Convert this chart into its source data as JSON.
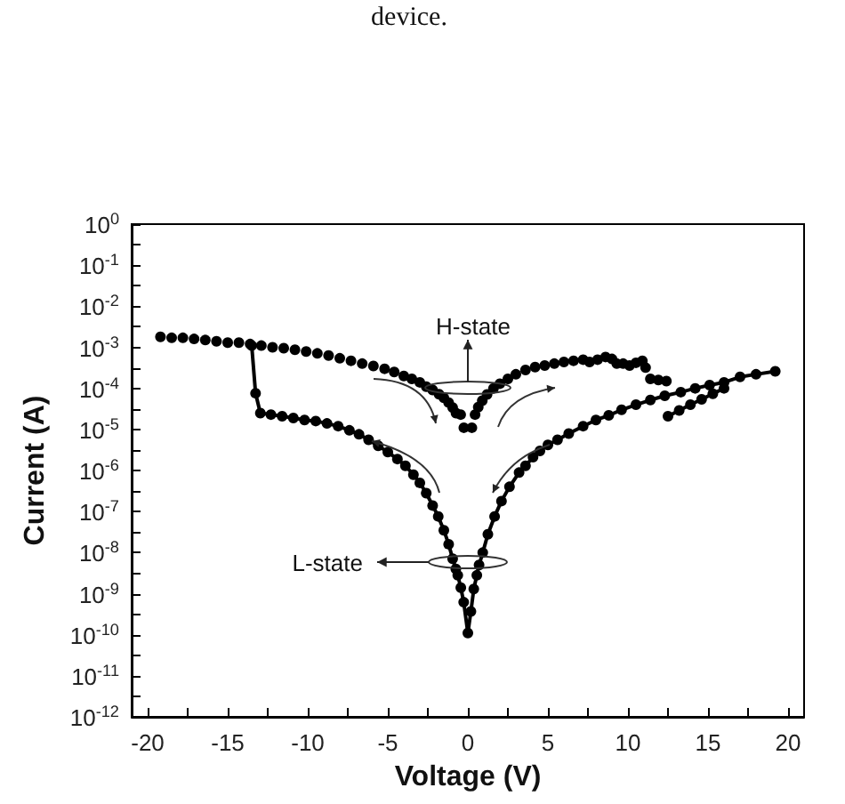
{
  "chart_data": {
    "type": "line",
    "xlabel": "Voltage (V)",
    "ylabel": "Current (A)",
    "log": "y",
    "marker": "circle",
    "line_style": "solid",
    "annotations": [
      "device.",
      "H-state",
      "L-state"
    ],
    "xlim": [
      -21,
      21
    ],
    "xticks": [
      -20,
      {
        "value": -17.5,
        "label": null
      },
      -15,
      {
        "value": -12.5,
        "label": null
      },
      -10,
      {
        "value": -7.5,
        "label": null
      },
      -5,
      {
        "value": -2.5,
        "label": null
      },
      0,
      {
        "value": 2.5,
        "label": null
      },
      5,
      {
        "value": 7.5,
        "label": null
      },
      10,
      {
        "value": 12.5,
        "label": null
      },
      15,
      {
        "value": 17.5,
        "label": null
      },
      20
    ],
    "ylim": [
      1e-12,
      1
    ],
    "yticks": [
      {
        "value": 1e-12,
        "label": "10$^{-12}$"
      },
      {
        "value": 3.16e-12,
        "label": null
      },
      {
        "value": 1e-11,
        "label": "10$^{-11}$"
      },
      {
        "value": 3.16e-11,
        "label": null
      },
      {
        "value": 1e-10,
        "label": "10$^{-10}$"
      },
      {
        "value": 3.16e-10,
        "label": null
      },
      {
        "value": 1e-09,
        "label": "10$^{-9}$"
      },
      {
        "value": 3.16e-09,
        "label": null
      },
      {
        "value": 1e-08,
        "label": "10$^{-8}$"
      },
      {
        "value": 3.16e-08,
        "label": null
      },
      {
        "value": 1e-07,
        "label": "10$^{-7}$"
      },
      {
        "value": 3.16e-07,
        "label": null
      },
      {
        "value": 1e-06,
        "label": "10$^{-6}$"
      },
      {
        "value": 3.16e-06,
        "label": null
      },
      {
        "value": 1e-05,
        "label": "10$^{-5}$"
      },
      {
        "value": 3.16e-05,
        "label": null
      },
      {
        "value": 0.0001,
        "label": "10$^{-4}$"
      },
      {
        "value": 0.000316,
        "label": null
      },
      {
        "value": 0.001,
        "label": "10$^{-3}$"
      },
      {
        "value": 0.00316,
        "label": null
      },
      {
        "value": 0.01,
        "label": "10$^{-2}$"
      },
      {
        "value": 0.0316,
        "label": null
      },
      {
        "value": 0.1,
        "label": "10$^{-1}$"
      },
      {
        "value": 0.316,
        "label": null
      },
      {
        "value": 1,
        "label": "10$^{0}$"
      }
    ],
    "series": [
      {
        "type": "scatter",
        "color": "#000000",
        "x": [
          -19.2,
          -18.5,
          -17.8,
          -17.1,
          -16.4,
          -15.7,
          -15.0,
          -14.3,
          -13.6,
          -12.9,
          -12.2,
          -11.5,
          -10.8,
          -10.1,
          -9.4,
          -8.7,
          -8.0,
          -7.3,
          -6.6,
          -5.9,
          -5.2,
          -4.6,
          -4.0,
          -3.5,
          -3.0,
          -2.6,
          -2.2,
          -1.8,
          -1.5,
          -1.2,
          -0.95,
          -0.74,
          -0.45,
          -0.25,
          0.25,
          0.45,
          0.65,
          0.9,
          1.2,
          1.6,
          2.0,
          2.5,
          3.0,
          3.6,
          4.2,
          4.8,
          5.4,
          6.0,
          6.6,
          7.2,
          7.6,
          8.1,
          8.6,
          9.0,
          9.3,
          9.7,
          10.1,
          10.5,
          10.9,
          11.1,
          11.4,
          11.9,
          12.4
        ],
        "values": [
          0.0018,
          0.0017,
          0.0017,
          0.0016,
          0.0015,
          0.0014,
          0.0013,
          0.0013,
          0.0012,
          0.0011,
          0.001,
          0.00095,
          0.00087,
          0.00079,
          0.00071,
          0.00063,
          0.00054,
          0.00047,
          0.0004,
          0.00035,
          0.0003,
          0.00025,
          0.0002,
          0.00017,
          0.00014,
          0.00011,
          9.1e-05,
          7.2e-05,
          5.9e-05,
          4.5e-05,
          3.4e-05,
          2.5e-05,
          2.3e-05,
          1.1e-05,
          1.1e-05,
          2.3e-05,
          3.5e-05,
          5e-05,
          7.1e-05,
          0.0001,
          0.00013,
          0.00017,
          0.00022,
          0.00028,
          0.00033,
          0.00036,
          0.0004,
          0.00044,
          0.00047,
          0.0005,
          0.00044,
          0.0005,
          0.00058,
          0.00052,
          0.0004,
          0.0004,
          0.00036,
          0.00042,
          0.00047,
          0.00032,
          0.00017,
          0.00016,
          0.00015
        ]
      },
      {
        "color": "#000000",
        "x": [
          -13.5,
          -13.26,
          -12.96,
          -12.3,
          -11.6,
          -10.9,
          -10.2,
          -9.5,
          -8.8,
          -8.1,
          -7.4,
          -6.8,
          -6.2,
          -5.6,
          -5.0,
          -4.4,
          -3.9,
          -3.4,
          -3.0,
          -2.6,
          -2.2,
          -1.85,
          -1.5,
          -1.2,
          -0.95,
          -0.75,
          -0.63,
          -0.44,
          -0.26,
          0,
          0.19,
          0.37,
          0.56,
          0.7,
          0.93,
          1.25,
          1.67,
          2.1,
          2.6,
          3.2,
          3.6,
          4.07,
          4.5,
          5.0,
          5.6,
          6.3,
          7.2,
          8.0,
          8.8,
          9.6,
          10.5,
          11.4,
          12.3,
          13.3,
          14.2,
          15.1,
          16.0,
          17.0,
          18.0,
          19.2
        ],
        "values": [
          0.0011,
          7.6e-05,
          2.5e-05,
          2.3e-05,
          2.1e-05,
          1.9e-05,
          1.7e-05,
          1.6e-05,
          1.4e-05,
          1.2e-05,
          9.5e-06,
          7.6e-06,
          5.6e-06,
          4e-06,
          2.8e-06,
          1.9e-06,
          1.3e-06,
          7.9e-07,
          5e-07,
          2.8e-07,
          1.4e-07,
          7.6e-08,
          3.5e-08,
          1.6e-08,
          7.1e-09,
          4e-09,
          2.8e-09,
          1.4e-09,
          6.2e-10,
          1.1e-10,
          3.7e-10,
          1.3e-09,
          2.8e-09,
          5e-09,
          1e-08,
          2.8e-08,
          7.6e-08,
          1.8e-07,
          4e-07,
          8.9e-07,
          1.3e-06,
          2.1e-06,
          3e-06,
          4.2e-06,
          5.6e-06,
          7.9e-06,
          1.2e-05,
          1.7e-05,
          2.2e-05,
          3e-05,
          4e-05,
          5.2e-05,
          6.6e-05,
          8.1e-05,
          0.0001,
          0.00012,
          0.00014,
          0.00019,
          0.00022,
          0.00026
        ]
      },
      {
        "color": "#000000",
        "x": [
          12.5,
          13.2,
          13.9,
          14.6,
          15.3,
          16.0
        ],
        "values": [
          2.1e-05,
          2.9e-05,
          4e-05,
          5.4e-05,
          7.4e-05,
          0.0001
        ]
      }
    ]
  }
}
